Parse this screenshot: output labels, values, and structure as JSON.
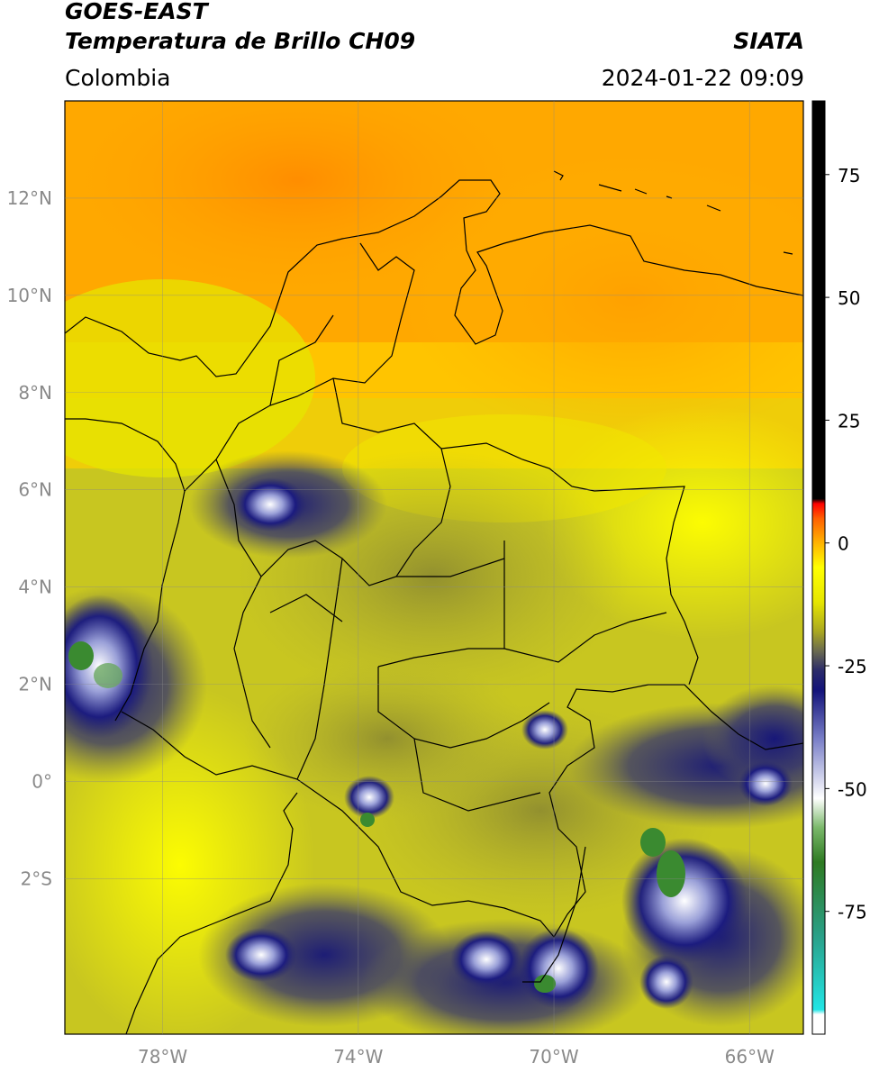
{
  "header": {
    "title_line1": "GOES-EAST",
    "title_line2": "Temperatura de Brillo CH09",
    "org": "SIATA",
    "region": "Colombia",
    "datetime": "2024-01-22 09:09"
  },
  "map": {
    "lon_range": [
      -80,
      -64.9
    ],
    "lat_range": [
      -5.2,
      14.0
    ],
    "lon_ticks": [
      {
        "v": -78,
        "label": "78°W"
      },
      {
        "v": -74,
        "label": "74°W"
      },
      {
        "v": -70,
        "label": "70°W"
      },
      {
        "v": -66,
        "label": "66°W"
      }
    ],
    "lat_ticks": [
      {
        "v": 12,
        "label": "12°N"
      },
      {
        "v": 10,
        "label": "10°N"
      },
      {
        "v": 8,
        "label": "8°N"
      },
      {
        "v": 6,
        "label": "6°N"
      },
      {
        "v": 4,
        "label": "4°N"
      },
      {
        "v": 2,
        "label": "2°N"
      },
      {
        "v": 0,
        "label": "0°"
      },
      {
        "v": -2,
        "label": "2°S"
      }
    ],
    "grid": true
  },
  "colorbar": {
    "range": [
      -100,
      90
    ],
    "ticks": [
      {
        "v": 75,
        "label": "75"
      },
      {
        "v": 50,
        "label": "50"
      },
      {
        "v": 25,
        "label": "25"
      },
      {
        "v": 0,
        "label": "0"
      },
      {
        "v": -25,
        "label": "-25"
      },
      {
        "v": -50,
        "label": "-50"
      },
      {
        "v": -75,
        "label": "-75"
      }
    ],
    "stops": [
      {
        "v": -100,
        "color": "#ffffff"
      },
      {
        "v": -96,
        "color": "#ffffff"
      },
      {
        "v": -95,
        "color": "#22e5e5"
      },
      {
        "v": -80,
        "color": "#2aa088"
      },
      {
        "v": -65,
        "color": "#2e7a22"
      },
      {
        "v": -58,
        "color": "#7ab86a"
      },
      {
        "v": -52,
        "color": "#ffffff"
      },
      {
        "v": -40,
        "color": "#7a80c8"
      },
      {
        "v": -30,
        "color": "#13137a"
      },
      {
        "v": -26,
        "color": "#2a2a6a"
      },
      {
        "v": -22,
        "color": "#6a6a50"
      },
      {
        "v": -18,
        "color": "#aaa820"
      },
      {
        "v": -12,
        "color": "#e6e600"
      },
      {
        "v": -5,
        "color": "#ffff00"
      },
      {
        "v": 0,
        "color": "#ffb400"
      },
      {
        "v": 5,
        "color": "#ff6000"
      },
      {
        "v": 8,
        "color": "#ff0000"
      },
      {
        "v": 9,
        "color": "#000000"
      },
      {
        "v": 90,
        "color": "#000000"
      }
    ]
  }
}
